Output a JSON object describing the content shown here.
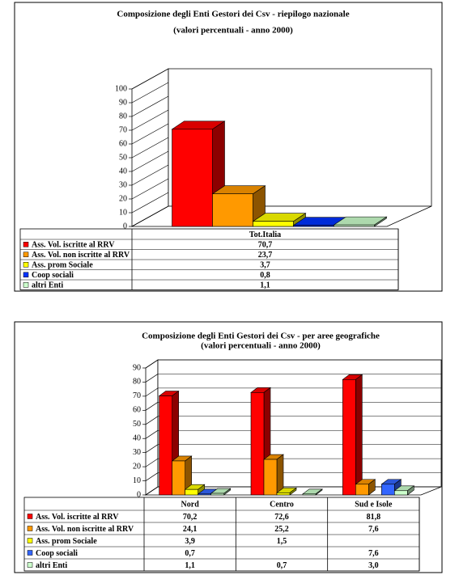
{
  "chart_data": [
    {
      "type": "bar3d",
      "title": "Composizione degli Enti Gestori dei Csv - riepilogo nazionale",
      "subtitle": "(valori percentuali - anno 2000)",
      "categories": [
        "Tot.Italia"
      ],
      "series": [
        {
          "name": "Ass. Vol. iscritte al RRV",
          "color": "#ff0000",
          "values": [
            70.7
          ],
          "value_labels": [
            "70,7"
          ]
        },
        {
          "name": "Ass. Vol. non iscritte al RRV",
          "color": "#ff9900",
          "values": [
            23.7
          ],
          "value_labels": [
            "23,7"
          ]
        },
        {
          "name": "Ass. prom Sociale",
          "color": "#ffff00",
          "values": [
            3.7
          ],
          "value_labels": [
            "3,7"
          ]
        },
        {
          "name": "Coop sociali",
          "color": "#0033ff",
          "values": [
            0.8
          ],
          "value_labels": [
            "0,8"
          ]
        },
        {
          "name": "altri Enti",
          "color": "#ccffcc",
          "values": [
            1.1
          ],
          "value_labels": [
            "1,1"
          ]
        }
      ],
      "ylim": [
        0,
        100
      ],
      "yticks": [
        0,
        10,
        20,
        30,
        40,
        50,
        60,
        70,
        80,
        90,
        100
      ],
      "grid": false
    },
    {
      "type": "bar3d",
      "title": "Composizione degli Enti Gestori dei Csv - per aree geografiche",
      "subtitle": "(valori percentuali - anno 2000)",
      "categories": [
        "Nord",
        "Centro",
        "Sud e Isole"
      ],
      "series": [
        {
          "name": "Ass. Vol. iscritte al RRV",
          "color": "#ff0000",
          "values": [
            70.2,
            72.6,
            81.8
          ],
          "value_labels": [
            "70,2",
            "72,6",
            "81,8"
          ]
        },
        {
          "name": "Ass. Vol. non iscritte al RRV",
          "color": "#ff9900",
          "values": [
            24.1,
            25.2,
            7.6
          ],
          "value_labels": [
            "24,1",
            "25,2",
            "7,6"
          ]
        },
        {
          "name": "Ass. prom Sociale",
          "color": "#ffff00",
          "values": [
            3.9,
            1.5,
            null
          ],
          "value_labels": [
            "3,9",
            "1,5",
            null
          ]
        },
        {
          "name": "Coop sociali",
          "color": "#3366ff",
          "values": [
            0.7,
            null,
            7.6
          ],
          "value_labels": [
            "0,7",
            null,
            "7,6"
          ]
        },
        {
          "name": "altri Enti",
          "color": "#ccffcc",
          "values": [
            1.1,
            0.7,
            3.0
          ],
          "value_labels": [
            "1,1",
            "0,7",
            "3,0"
          ]
        }
      ],
      "ylim": [
        0,
        90
      ],
      "yticks": [
        0,
        10,
        20,
        30,
        40,
        50,
        60,
        70,
        80,
        90
      ],
      "grid": true
    }
  ]
}
